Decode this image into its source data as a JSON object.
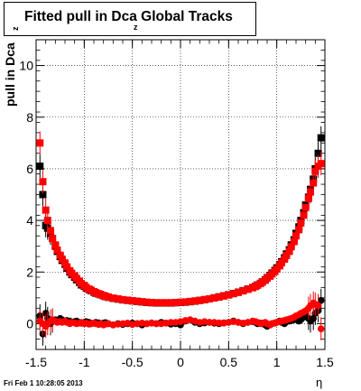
{
  "header": {
    "title_main": "Fitted pull in Dca Global Tracks",
    "title_sub": "z"
  },
  "footer": {
    "datestamp": "Fri Feb  1 10:28:05 2013"
  },
  "chart_data": {
    "type": "scatter",
    "title": "Fitted pull in Dca Global Tracks",
    "xlabel": "η",
    "ylabel": "pull in Dca",
    "ylabel_subscript": "z",
    "xlim": [
      -1.5,
      1.5
    ],
    "ylim": [
      -1,
      11
    ],
    "xticks": [
      -1.5,
      -1,
      -0.5,
      0,
      0.5,
      1,
      1.5
    ],
    "xtick_labels": [
      "-1.5",
      "-1",
      "-0.5",
      "0",
      "0.5",
      "1",
      "1.5"
    ],
    "yticks": [
      0,
      2,
      4,
      6,
      8,
      10
    ],
    "ytick_labels": [
      "0",
      "2",
      "4",
      "6",
      "8",
      "10"
    ],
    "grid": true,
    "series": [
      {
        "name": "",
        "color": "#000000",
        "marker": "square",
        "x": [
          -1.46,
          -1.43,
          -1.4,
          -1.38,
          -1.35,
          -1.33,
          -1.3,
          -1.28,
          -1.25,
          -1.23,
          -1.2,
          -1.18,
          -1.15,
          -1.13,
          -1.1,
          -1.08,
          -1.05,
          -1.03,
          -1.0,
          -0.98,
          -0.95,
          -0.93,
          -0.9,
          -0.88,
          -0.85,
          -0.83,
          -0.8,
          -0.78,
          -0.75,
          -0.7,
          -0.65,
          -0.6,
          -0.55,
          -0.5,
          -0.45,
          -0.4,
          -0.35,
          -0.3,
          -0.25,
          -0.2,
          -0.15,
          -0.1,
          -0.05,
          0.0,
          0.05,
          0.1,
          0.15,
          0.2,
          0.25,
          0.3,
          0.35,
          0.4,
          0.45,
          0.5,
          0.55,
          0.6,
          0.65,
          0.7,
          0.75,
          0.78,
          0.8,
          0.83,
          0.85,
          0.88,
          0.9,
          0.93,
          0.95,
          0.98,
          1.0,
          1.03,
          1.05,
          1.08,
          1.1,
          1.13,
          1.15,
          1.18,
          1.2,
          1.23,
          1.25,
          1.28,
          1.3,
          1.33,
          1.35,
          1.38,
          1.4,
          1.43,
          1.46
        ],
        "y": [
          6.1,
          5.0,
          3.8,
          3.7,
          3.5,
          3.3,
          3.0,
          2.8,
          2.6,
          2.45,
          2.3,
          2.15,
          2.0,
          1.9,
          1.8,
          1.7,
          1.6,
          1.5,
          1.45,
          1.38,
          1.32,
          1.28,
          1.22,
          1.18,
          1.15,
          1.12,
          1.08,
          1.05,
          1.02,
          0.98,
          0.95,
          0.92,
          0.9,
          0.88,
          0.86,
          0.84,
          0.82,
          0.81,
          0.8,
          0.8,
          0.8,
          0.8,
          0.81,
          0.82,
          0.83,
          0.85,
          0.87,
          0.9,
          0.93,
          0.96,
          1.0,
          1.04,
          1.08,
          1.12,
          1.17,
          1.22,
          1.28,
          1.34,
          1.4,
          1.45,
          1.5,
          1.56,
          1.62,
          1.7,
          1.78,
          1.87,
          1.96,
          2.06,
          2.16,
          2.28,
          2.4,
          2.55,
          2.7,
          2.86,
          3.05,
          3.25,
          3.5,
          3.75,
          4.0,
          4.3,
          4.6,
          4.9,
          5.2,
          5.6,
          6.0,
          6.6,
          7.2
        ]
      },
      {
        "name": "",
        "color": "#ff0000",
        "marker": "square",
        "x": [
          -1.46,
          -1.43,
          -1.4,
          -1.38,
          -1.35,
          -1.33,
          -1.3,
          -1.28,
          -1.25,
          -1.23,
          -1.2,
          -1.18,
          -1.15,
          -1.13,
          -1.1,
          -1.08,
          -1.05,
          -1.03,
          -1.0,
          -0.98,
          -0.95,
          -0.93,
          -0.9,
          -0.88,
          -0.85,
          -0.83,
          -0.8,
          -0.78,
          -0.75,
          -0.7,
          -0.65,
          -0.6,
          -0.55,
          -0.5,
          -0.45,
          -0.4,
          -0.35,
          -0.3,
          -0.25,
          -0.2,
          -0.15,
          -0.1,
          -0.05,
          0.0,
          0.05,
          0.1,
          0.15,
          0.2,
          0.25,
          0.3,
          0.35,
          0.4,
          0.45,
          0.5,
          0.55,
          0.6,
          0.65,
          0.7,
          0.75,
          0.78,
          0.8,
          0.83,
          0.85,
          0.88,
          0.9,
          0.93,
          0.95,
          0.98,
          1.0,
          1.03,
          1.05,
          1.08,
          1.1,
          1.13,
          1.15,
          1.18,
          1.2,
          1.23,
          1.25,
          1.28,
          1.3,
          1.33,
          1.35,
          1.38,
          1.4,
          1.43,
          1.46
        ],
        "y": [
          7.0,
          5.5,
          4.4,
          4.0,
          3.6,
          3.3,
          3.05,
          2.85,
          2.65,
          2.5,
          2.35,
          2.2,
          2.05,
          1.95,
          1.85,
          1.75,
          1.65,
          1.55,
          1.48,
          1.4,
          1.34,
          1.3,
          1.24,
          1.2,
          1.16,
          1.13,
          1.09,
          1.06,
          1.03,
          0.99,
          0.96,
          0.93,
          0.91,
          0.89,
          0.87,
          0.85,
          0.83,
          0.82,
          0.81,
          0.81,
          0.81,
          0.81,
          0.82,
          0.83,
          0.84,
          0.86,
          0.88,
          0.9,
          0.93,
          0.96,
          1.0,
          1.03,
          1.07,
          1.11,
          1.16,
          1.21,
          1.27,
          1.33,
          1.39,
          1.44,
          1.49,
          1.55,
          1.61,
          1.68,
          1.76,
          1.84,
          1.93,
          2.02,
          2.12,
          2.24,
          2.36,
          2.5,
          2.64,
          2.8,
          2.98,
          3.18,
          3.4,
          3.64,
          3.9,
          4.2,
          4.5,
          4.85,
          5.1,
          5.45,
          5.9,
          6.1,
          6.2
        ]
      },
      {
        "name": "",
        "color": "#000000",
        "marker": "circle",
        "x": [
          -1.46,
          -1.43,
          -1.4,
          -1.38,
          -1.35,
          -1.33,
          -1.3,
          -1.28,
          -1.25,
          -1.23,
          -1.2,
          -1.18,
          -1.15,
          -1.13,
          -1.1,
          -1.08,
          -1.05,
          -1.03,
          -1.0,
          -0.98,
          -0.95,
          -0.93,
          -0.9,
          -0.88,
          -0.85,
          -0.83,
          -0.8,
          -0.78,
          -0.75,
          -0.7,
          -0.65,
          -0.6,
          -0.55,
          -0.5,
          -0.45,
          -0.4,
          -0.35,
          -0.3,
          -0.25,
          -0.2,
          -0.15,
          -0.1,
          -0.05,
          0.0,
          0.05,
          0.1,
          0.15,
          0.2,
          0.25,
          0.3,
          0.35,
          0.4,
          0.45,
          0.5,
          0.55,
          0.6,
          0.65,
          0.7,
          0.75,
          0.78,
          0.8,
          0.83,
          0.85,
          0.88,
          0.9,
          0.93,
          0.95,
          0.98,
          1.0,
          1.03,
          1.05,
          1.08,
          1.1,
          1.13,
          1.15,
          1.18,
          1.2,
          1.23,
          1.25,
          1.28,
          1.3,
          1.33,
          1.35,
          1.38,
          1.4,
          1.43,
          1.46
        ],
        "y": [
          0.3,
          -0.4,
          0.4,
          0.2,
          0.0,
          0.1,
          0.15,
          0.1,
          0.2,
          0.15,
          0.1,
          0.12,
          0.1,
          0.05,
          0.08,
          0.1,
          0.05,
          0.02,
          0.05,
          0.08,
          0.05,
          0.0,
          0.02,
          0.05,
          0.03,
          0.0,
          0.02,
          0.04,
          0.0,
          -0.05,
          0.0,
          -0.03,
          0.0,
          0.02,
          0.0,
          -0.05,
          0.0,
          0.02,
          0.0,
          0.05,
          0.02,
          -0.02,
          0.0,
          -0.05,
          0.1,
          0.15,
          0.05,
          0.0,
          0.03,
          0.05,
          0.02,
          0.0,
          0.03,
          0.05,
          0.1,
          0.05,
          0.0,
          0.05,
          0.08,
          0.05,
          0.0,
          0.02,
          0.0,
          -0.05,
          -0.1,
          -0.05,
          0.0,
          0.02,
          0.05,
          0.1,
          0.05,
          0.0,
          0.08,
          0.1,
          0.12,
          0.15,
          0.2,
          0.1,
          0.15,
          0.25,
          0.3,
          0.2,
          0.1,
          0.2,
          0.4,
          0.5,
          0.9
        ]
      },
      {
        "name": "",
        "color": "#ff0000",
        "marker": "circle",
        "x": [
          -1.46,
          -1.43,
          -1.4,
          -1.38,
          -1.35,
          -1.33,
          -1.3,
          -1.28,
          -1.25,
          -1.23,
          -1.2,
          -1.18,
          -1.15,
          -1.13,
          -1.1,
          -1.08,
          -1.05,
          -1.03,
          -1.0,
          -0.98,
          -0.95,
          -0.93,
          -0.9,
          -0.88,
          -0.85,
          -0.83,
          -0.8,
          -0.78,
          -0.75,
          -0.7,
          -0.65,
          -0.6,
          -0.55,
          -0.5,
          -0.45,
          -0.4,
          -0.35,
          -0.3,
          -0.25,
          -0.2,
          -0.15,
          -0.1,
          -0.05,
          0.0,
          0.05,
          0.1,
          0.15,
          0.2,
          0.25,
          0.3,
          0.35,
          0.4,
          0.45,
          0.5,
          0.55,
          0.6,
          0.65,
          0.7,
          0.75,
          0.78,
          0.8,
          0.83,
          0.85,
          0.88,
          0.9,
          0.93,
          0.95,
          0.98,
          1.0,
          1.03,
          1.05,
          1.08,
          1.1,
          1.13,
          1.15,
          1.18,
          1.2,
          1.23,
          1.25,
          1.28,
          1.3,
          1.33,
          1.35,
          1.38,
          1.4,
          1.43,
          1.46
        ],
        "y": [
          0.1,
          0.0,
          -0.1,
          0.0,
          0.1,
          0.15,
          0.1,
          0.05,
          0.08,
          0.05,
          0.1,
          0.05,
          0.0,
          0.05,
          0.03,
          0.0,
          0.02,
          0.05,
          0.0,
          0.02,
          -0.02,
          0.0,
          0.02,
          0.0,
          -0.03,
          0.0,
          -0.05,
          -0.02,
          0.0,
          -0.05,
          -0.02,
          0.0,
          0.02,
          -0.03,
          0.0,
          0.02,
          0.0,
          0.03,
          0.0,
          0.0,
          0.02,
          0.05,
          0.05,
          0.08,
          0.12,
          0.15,
          0.1,
          0.05,
          0.08,
          0.05,
          0.05,
          0.03,
          0.02,
          0.05,
          0.08,
          0.05,
          0.02,
          0.05,
          0.1,
          0.08,
          0.05,
          0.0,
          0.02,
          0.05,
          0.0,
          -0.05,
          0.0,
          0.03,
          0.05,
          0.08,
          0.1,
          0.12,
          0.15,
          0.18,
          0.2,
          0.25,
          0.3,
          0.35,
          0.4,
          0.45,
          0.5,
          0.6,
          0.7,
          0.8,
          0.75,
          0.7,
          -0.2
        ]
      }
    ]
  }
}
